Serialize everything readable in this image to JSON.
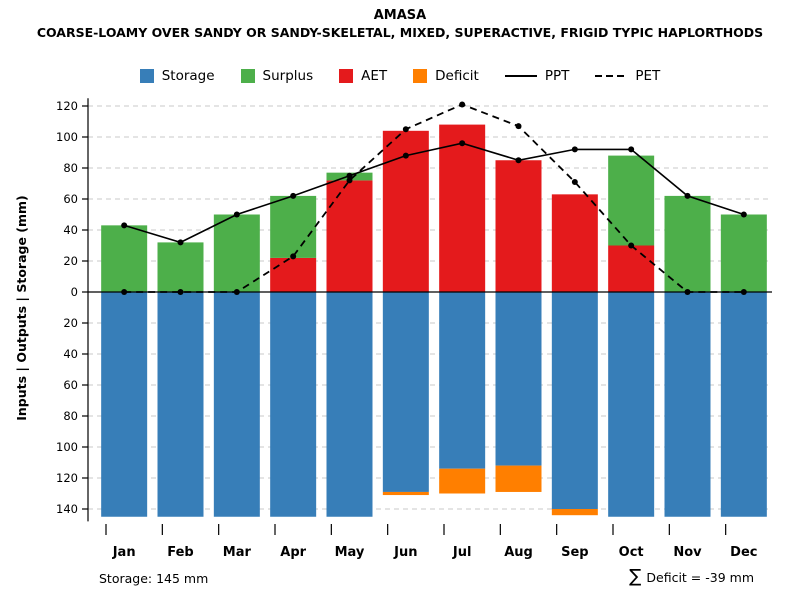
{
  "colors": {
    "storage": "#377EB8",
    "surplus": "#4DAF4A",
    "aet": "#E41A1C",
    "deficit": "#FF7F00",
    "line": "#000000",
    "grid": "#C8C8C8"
  },
  "legend": [
    {
      "label": "Storage",
      "type": "swatch",
      "color_key": "storage"
    },
    {
      "label": "Surplus",
      "type": "swatch",
      "color_key": "surplus"
    },
    {
      "label": "AET",
      "type": "swatch",
      "color_key": "aet"
    },
    {
      "label": "Deficit",
      "type": "swatch",
      "color_key": "deficit"
    },
    {
      "label": "PPT",
      "type": "line-solid"
    },
    {
      "label": "PET",
      "type": "line-dashed"
    }
  ],
  "chart_data": {
    "type": "bar",
    "title": "AMASA",
    "subtitle": "COARSE-LOAMY OVER SANDY OR SANDY-SKELETAL, MIXED, SUPERACTIVE, FRIGID TYPIC HAPLORTHODS",
    "categories": [
      "Jan",
      "Feb",
      "Mar",
      "Apr",
      "May",
      "Jun",
      "Jul",
      "Aug",
      "Sep",
      "Oct",
      "Nov",
      "Dec"
    ],
    "series": [
      {
        "name": "AET",
        "kind": "bar-above",
        "values": [
          0,
          0,
          0,
          22,
          72,
          104,
          108,
          85,
          63,
          30,
          0,
          0
        ]
      },
      {
        "name": "Surplus",
        "kind": "bar-above-stack",
        "values": [
          43,
          32,
          50,
          40,
          5,
          0,
          0,
          0,
          0,
          58,
          62,
          50
        ]
      },
      {
        "name": "Storage",
        "kind": "bar-below",
        "values": [
          145,
          145,
          145,
          145,
          145,
          129,
          114,
          112,
          140,
          145,
          145,
          145
        ]
      },
      {
        "name": "Deficit",
        "kind": "bar-below-stack",
        "values": [
          0,
          0,
          0,
          0,
          0,
          2,
          16,
          17,
          4,
          0,
          0,
          0
        ]
      },
      {
        "name": "PPT",
        "kind": "line-solid",
        "values": [
          43,
          32,
          50,
          62,
          75,
          88,
          96,
          85,
          92,
          92,
          62,
          50
        ]
      },
      {
        "name": "PET",
        "kind": "line-dashed",
        "values": [
          0,
          0,
          0,
          23,
          72,
          105,
          121,
          107,
          71,
          30,
          0,
          0
        ]
      }
    ],
    "ylabel": "Inputs | Outputs | Storage   (mm)",
    "yticks": [
      120,
      100,
      80,
      60,
      40,
      20,
      0,
      -20,
      -40,
      -60,
      -80,
      -100,
      -120,
      -140
    ],
    "ytick_labels_are_absolute": true,
    "ylim": [
      -150,
      125
    ],
    "grid": true,
    "legend_position": "top",
    "annotations": {
      "storage_note": "Storage: 145 mm",
      "sigma": "∑",
      "deficit_note": "Deficit = -39 mm"
    }
  }
}
